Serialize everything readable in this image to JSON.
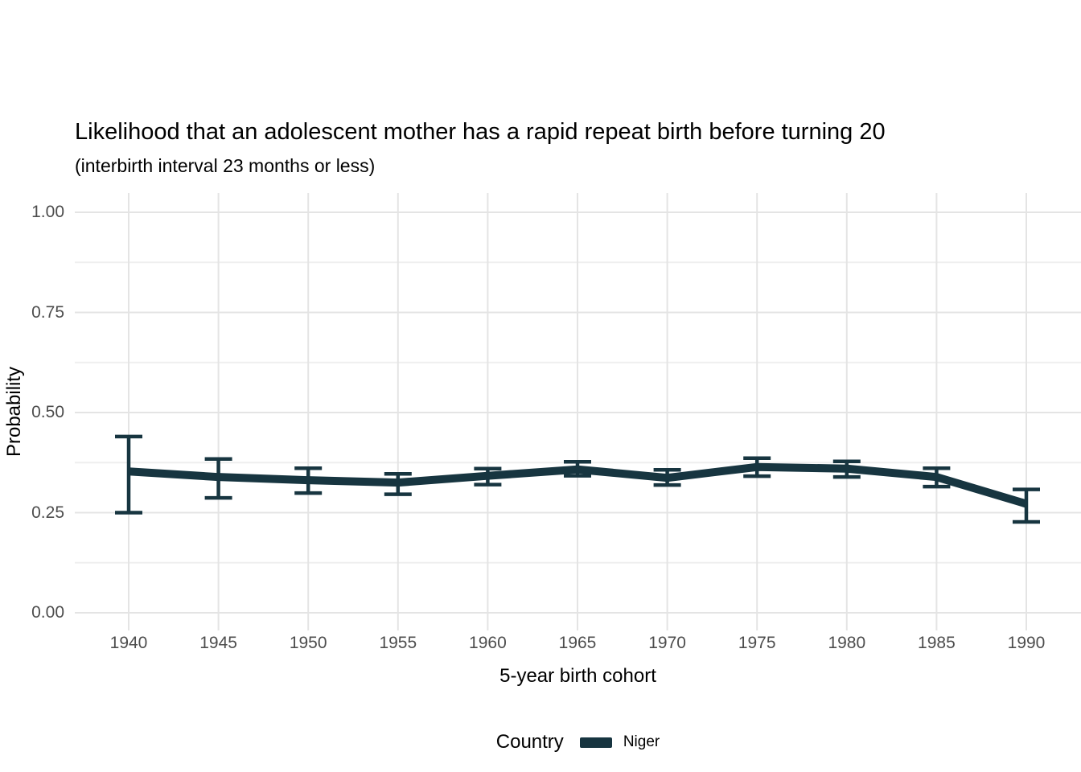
{
  "chart_data": {
    "type": "line",
    "title": "Likelihood that an adolescent mother has a rapid repeat birth before turning 20",
    "subtitle": "(interbirth interval 23 months or less)",
    "xlabel": "5-year birth cohort",
    "ylabel": "Probability",
    "legend": {
      "title": "Country",
      "series_label": "Niger",
      "position": "bottom"
    },
    "x": [
      1940,
      1945,
      1950,
      1955,
      1960,
      1965,
      1970,
      1975,
      1980,
      1985,
      1990
    ],
    "x_tick_labels": [
      "1940",
      "1945",
      "1950",
      "1955",
      "1960",
      "1965",
      "1970",
      "1975",
      "1980",
      "1985",
      "1990"
    ],
    "series": [
      {
        "name": "Niger",
        "values": [
          0.353,
          0.339,
          0.331,
          0.325,
          0.342,
          0.358,
          0.337,
          0.364,
          0.36,
          0.339,
          0.272
        ],
        "ci_low": [
          0.25,
          0.287,
          0.299,
          0.296,
          0.32,
          0.342,
          0.319,
          0.341,
          0.339,
          0.315,
          0.227
        ],
        "ci_high": [
          0.44,
          0.384,
          0.361,
          0.347,
          0.36,
          0.377,
          0.357,
          0.386,
          0.378,
          0.361,
          0.308
        ]
      }
    ],
    "y_ticks": [
      {
        "value": 0.0,
        "label": "0.00"
      },
      {
        "value": 0.25,
        "label": "0.25"
      },
      {
        "value": 0.5,
        "label": "0.50"
      },
      {
        "value": 0.75,
        "label": "0.75"
      },
      {
        "value": 1.0,
        "label": "1.00"
      }
    ],
    "ylim": [
      0,
      1
    ],
    "grid": "major-and-minor-y, major-x",
    "colors": {
      "line": "#173540",
      "grid_major": "#E4E4E4",
      "grid_minor": "#EFEFEF",
      "tick_label": "#4D4D4D",
      "text": "#000000",
      "background": "#FFFFFF"
    }
  }
}
